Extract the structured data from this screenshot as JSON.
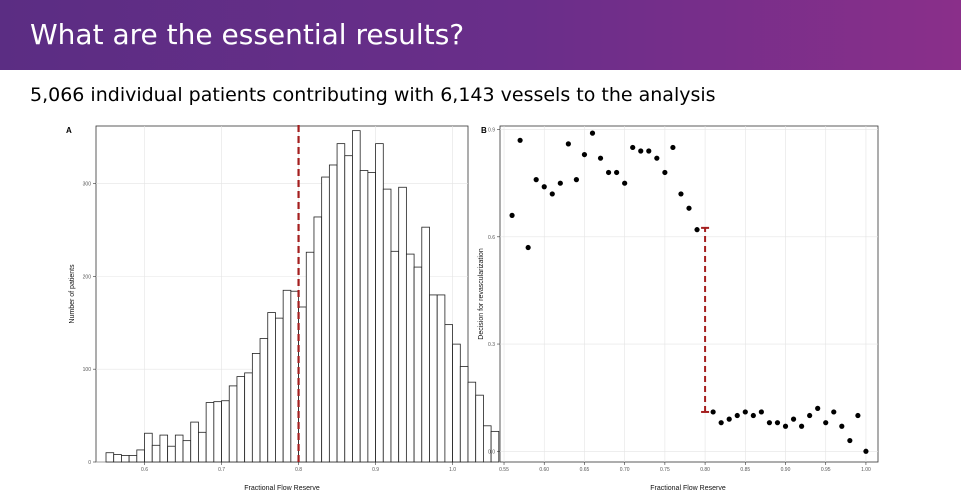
{
  "header": {
    "title": "What are the essential results?",
    "subtitle": "5,066 individual patients contributing with 6,143 vessels to the analysis"
  },
  "colors": {
    "banner_start": "#5b2d83",
    "banner_end": "#8a2f8a",
    "threshold_line": "#a41e1e"
  },
  "chart_data": [
    {
      "type": "bar",
      "panel_label": "A",
      "xlabel": "Fractional Flow Reserve",
      "ylabel": "Number of patients",
      "xlim": [
        0.537,
        1.02
      ],
      "ylim": [
        0,
        362
      ],
      "xticks": [
        {
          "value": 0.6,
          "label": "0.6"
        },
        {
          "value": 0.7,
          "label": "0.7"
        },
        {
          "value": 0.8,
          "label": "0.8"
        },
        {
          "value": 0.9,
          "label": "0.9"
        },
        {
          "value": 1.0,
          "label": "1.0"
        }
      ],
      "yticks": [
        {
          "value": 0,
          "label": "0"
        },
        {
          "value": 100,
          "label": "100"
        },
        {
          "value": 200,
          "label": "200"
        },
        {
          "value": 300,
          "label": "300"
        }
      ],
      "bin_start": 0.55,
      "bin_width": 0.01,
      "values": [
        10,
        8,
        7,
        7,
        13,
        31,
        18,
        29,
        17,
        29,
        23,
        43,
        32,
        64,
        65,
        66,
        82,
        92,
        96,
        117,
        133,
        161,
        155,
        185,
        184,
        167,
        226,
        264,
        307,
        320,
        343,
        330,
        357,
        314,
        312,
        343,
        294,
        227,
        296,
        224,
        210,
        253,
        180,
        180,
        148,
        127,
        103,
        86,
        72,
        39,
        33
      ],
      "threshold": {
        "x": 0.8,
        "ymax": 365
      },
      "grid": true
    },
    {
      "type": "scatter",
      "panel_label": "B",
      "xlabel": "Fractional Flow Reserve",
      "ylabel": "Decision for revascularization",
      "xlim": [
        0.545,
        1.015
      ],
      "ylim": [
        -0.03,
        0.91
      ],
      "xticks": [
        {
          "value": 0.55,
          "label": "0.55"
        },
        {
          "value": 0.6,
          "label": "0.60"
        },
        {
          "value": 0.65,
          "label": "0.65"
        },
        {
          "value": 0.7,
          "label": "0.70"
        },
        {
          "value": 0.75,
          "label": "0.75"
        },
        {
          "value": 0.8,
          "label": "0.80"
        },
        {
          "value": 0.85,
          "label": "0.85"
        },
        {
          "value": 0.9,
          "label": "0.90"
        },
        {
          "value": 0.95,
          "label": "0.95"
        },
        {
          "value": 1.0,
          "label": "1.00"
        }
      ],
      "yticks": [
        {
          "value": 0.0,
          "label": "0.0"
        },
        {
          "value": 0.3,
          "label": "0.3"
        },
        {
          "value": 0.6,
          "label": "0.6"
        },
        {
          "value": 0.9,
          "label": "0.9"
        }
      ],
      "x": [
        0.56,
        0.57,
        0.58,
        0.59,
        0.6,
        0.61,
        0.62,
        0.63,
        0.64,
        0.65,
        0.66,
        0.67,
        0.68,
        0.69,
        0.7,
        0.71,
        0.72,
        0.73,
        0.74,
        0.75,
        0.76,
        0.77,
        0.78,
        0.79,
        0.81,
        0.82,
        0.83,
        0.84,
        0.85,
        0.86,
        0.87,
        0.88,
        0.89,
        0.9,
        0.91,
        0.92,
        0.93,
        0.94,
        0.95,
        0.96,
        0.97,
        0.98,
        0.99,
        1.0
      ],
      "y": [
        0.66,
        0.87,
        0.57,
        0.76,
        0.74,
        0.72,
        0.75,
        0.86,
        0.76,
        0.83,
        0.89,
        0.82,
        0.78,
        0.78,
        0.75,
        0.85,
        0.84,
        0.84,
        0.82,
        0.78,
        0.85,
        0.72,
        0.68,
        0.62,
        0.11,
        0.08,
        0.09,
        0.1,
        0.11,
        0.1,
        0.11,
        0.08,
        0.08,
        0.07,
        0.09,
        0.07,
        0.1,
        0.12,
        0.08,
        0.11,
        0.07,
        0.03,
        0.1,
        0.0
      ],
      "gap_marker": {
        "x": 0.8,
        "y_low": 0.11,
        "y_high": 0.625
      },
      "grid": true
    }
  ]
}
